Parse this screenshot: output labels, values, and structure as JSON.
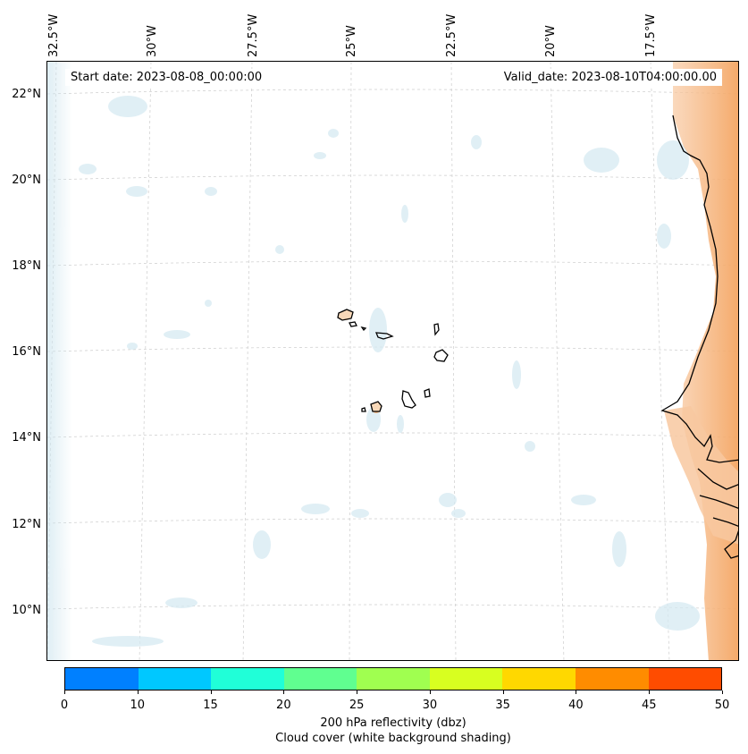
{
  "map": {
    "lon_labels": [
      "32.5°W",
      "30°W",
      "27.5°W",
      "25°W",
      "22.5°W",
      "20°W",
      "17.5°W"
    ],
    "lat_labels": [
      "22°N",
      "20°N",
      "18°N",
      "16°N",
      "14°N",
      "12°N",
      "10°N"
    ],
    "start_date": "Start date: 2023-08-08_00:00:00",
    "valid_date": "Valid_date: 2023-08-10T04:00:00.00",
    "colors": {
      "coastline": "#000000",
      "cloud_shading": "#d6eaf2",
      "high_reflectivity": "#f4a460",
      "gridline": "#cccccc"
    }
  },
  "colorbar": {
    "ticks": [
      "0",
      "10",
      "15",
      "20",
      "25",
      "30",
      "35",
      "40",
      "45",
      "50"
    ],
    "colors": [
      "#0080ff",
      "#00c8ff",
      "#20ffd8",
      "#60ff90",
      "#a0ff50",
      "#d8ff20",
      "#ffd800",
      "#ff8c00",
      "#ff4c00"
    ],
    "label_line1": "200 hPa reflectivity (dbz)",
    "label_line2": "Cloud cover (white background shading)"
  }
}
